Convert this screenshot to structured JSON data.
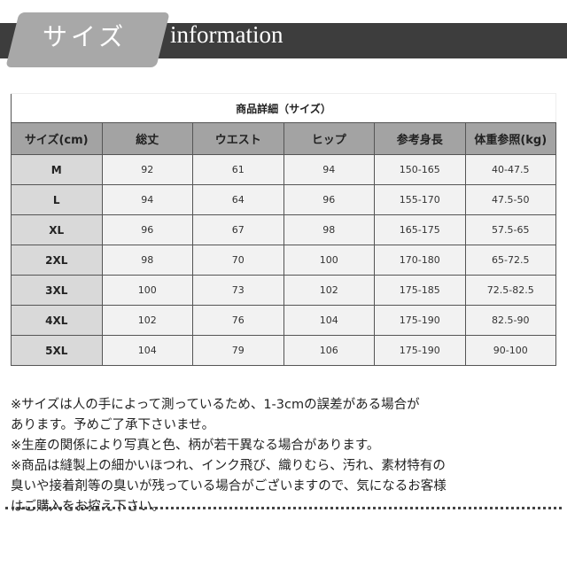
{
  "banner": {
    "tab_label": "サイズ",
    "title": "information"
  },
  "table": {
    "title": "商品詳細（サイズ）",
    "headers": [
      "サイズ(cm)",
      "総丈",
      "ウエスト",
      "ヒップ",
      "参考身長",
      "体重参照(kg)"
    ],
    "rows": [
      [
        "M",
        "92",
        "61",
        "94",
        "150-165",
        "40-47.5"
      ],
      [
        "L",
        "94",
        "64",
        "96",
        "155-170",
        "47.5-50"
      ],
      [
        "XL",
        "96",
        "67",
        "98",
        "165-175",
        "57.5-65"
      ],
      [
        "2XL",
        "98",
        "70",
        "100",
        "170-180",
        "65-72.5"
      ],
      [
        "3XL",
        "100",
        "73",
        "102",
        "175-185",
        "72.5-82.5"
      ],
      [
        "4XL",
        "102",
        "76",
        "104",
        "175-190",
        "82.5-90"
      ],
      [
        "5XL",
        "104",
        "79",
        "106",
        "175-190",
        "90-100"
      ]
    ]
  },
  "notes": [
    "※サイズは人の手によって測っているため、1-3cmの誤差がある場合が",
    "あります。予めご了承下さいませ。",
    "※生産の関係により写真と色、柄が若干異なる場合があります。",
    "※商品は縫製上の細かいほつれ、インク飛び、織りむら、汚れ、素材特有の",
    "臭いや接着剤等の臭いが残っている場合がございますので、気になるお客様",
    "はご購入をお控え下さい。"
  ],
  "colors": {
    "banner": "#3d3d3d",
    "tab": "#a8a8a8",
    "header": "#a3a3a3",
    "size_cell": "#d9d9d9",
    "value_cell": "#f2f2f2"
  }
}
